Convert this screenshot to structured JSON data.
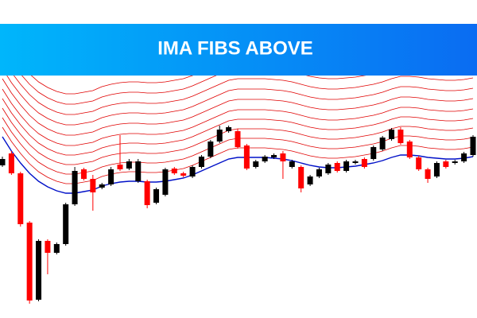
{
  "chart_data": {
    "type": "candlestick",
    "title": "IMA FIBS ABOVE",
    "up_color": "#000000",
    "down_color": "#ff0000",
    "ma_color": "#0010c8",
    "fib_color": "#e00000",
    "ylim": [
      0,
      305
    ],
    "open": [
      192,
      207,
      182,
      120,
      23,
      97,
      82,
      93,
      143,
      187,
      175,
      164,
      168,
      193,
      188,
      172,
      172,
      145,
      155,
      188,
      182,
      178,
      190,
      203,
      222,
      235,
      235,
      217,
      190,
      197,
      202,
      207,
      190,
      190,
      168,
      178,
      182,
      195,
      185,
      195,
      200,
      200,
      212,
      225,
      237,
      222,
      202,
      187,
      178,
      197,
      195,
      197,
      205
    ],
    "high": [
      203,
      210,
      184,
      122,
      99,
      99,
      95,
      145,
      190,
      189,
      180,
      170,
      190,
      230,
      200,
      200,
      174,
      164,
      189,
      190,
      184,
      192,
      205,
      224,
      242,
      242,
      238,
      219,
      199,
      205,
      207,
      210,
      199,
      192,
      180,
      189,
      195,
      197,
      199,
      199,
      202,
      217,
      229,
      239,
      240,
      224,
      204,
      189,
      197,
      199,
      199,
      209,
      230
    ],
    "low": [
      190,
      180,
      115,
      18,
      21,
      55,
      80,
      91,
      141,
      173,
      135,
      162,
      166,
      185,
      186,
      170,
      138,
      143,
      153,
      180,
      177,
      176,
      188,
      201,
      220,
      233,
      213,
      186,
      188,
      195,
      200,
      175,
      188,
      158,
      166,
      176,
      180,
      183,
      183,
      193,
      188,
      198,
      210,
      223,
      218,
      200,
      185,
      170,
      176,
      188,
      193,
      195,
      203
    ],
    "close": [
      200,
      182,
      118,
      22,
      97,
      82,
      93,
      143,
      185,
      175,
      158,
      168,
      187,
      187,
      197,
      197,
      142,
      162,
      187,
      182,
      179,
      190,
      203,
      222,
      237,
      240,
      215,
      188,
      197,
      203,
      205,
      197,
      197,
      163,
      178,
      187,
      193,
      185,
      197,
      197,
      190,
      215,
      227,
      237,
      220,
      202,
      187,
      175,
      195,
      190,
      197,
      207,
      228
    ],
    "ma": [
      228,
      210,
      195,
      182,
      172,
      165,
      160,
      157,
      157,
      159,
      161,
      166,
      169,
      171,
      172,
      172,
      171,
      171,
      172,
      174,
      176,
      180,
      185,
      190,
      195,
      200,
      202,
      202,
      202,
      202,
      201,
      200,
      198,
      195,
      192,
      190,
      189,
      189,
      190,
      191,
      193,
      195,
      198,
      202,
      205,
      205,
      204,
      202,
      201,
      200,
      200,
      201,
      203
    ],
    "fib_offsets": [
      12,
      24,
      36,
      48,
      60,
      73,
      86,
      99,
      112,
      125
    ]
  }
}
